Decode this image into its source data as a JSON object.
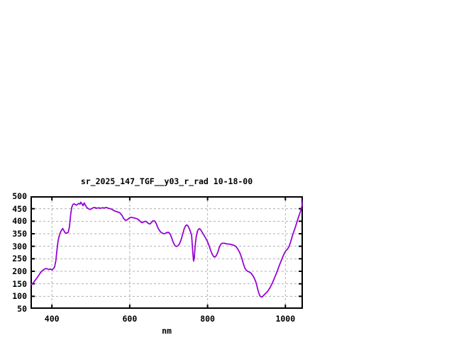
{
  "window": {
    "background": "#ffffff"
  },
  "chart": {
    "title": "sr_2025_147_TGF__y03_r_rad 10-18-00",
    "xlabel": "nm"
  },
  "chart_data": {
    "type": "line",
    "title": "sr_2025_147_TGF__y03_r_rad 10-18-00",
    "xlabel": "nm",
    "ylabel": "",
    "x_range": [
      345,
      1045
    ],
    "y_range": [
      50,
      500
    ],
    "x_ticks": [
      400,
      600,
      800,
      1000
    ],
    "y_ticks": [
      50,
      100,
      150,
      200,
      250,
      300,
      350,
      400,
      450,
      500
    ],
    "grid": true,
    "legend_position": "none",
    "colors": {
      "line": "#9400d3",
      "grid": "#b0b0b0",
      "frame": "#000000",
      "text": "#000000",
      "background": "#ffffff"
    },
    "series": [
      {
        "name": "sr_2025_147_TGF__y03_r_rad 10-18-00",
        "points": [
          [
            345,
            150
          ],
          [
            348,
            147
          ],
          [
            352,
            153
          ],
          [
            356,
            162
          ],
          [
            360,
            170
          ],
          [
            365,
            181
          ],
          [
            370,
            193
          ],
          [
            375,
            202
          ],
          [
            380,
            208
          ],
          [
            384,
            211
          ],
          [
            388,
            210
          ],
          [
            392,
            207
          ],
          [
            396,
            209
          ],
          [
            400,
            205
          ],
          [
            404,
            211
          ],
          [
            407,
            218
          ],
          [
            410,
            242
          ],
          [
            413,
            285
          ],
          [
            416,
            322
          ],
          [
            419,
            343
          ],
          [
            422,
            356
          ],
          [
            425,
            365
          ],
          [
            428,
            371
          ],
          [
            431,
            362
          ],
          [
            434,
            354
          ],
          [
            438,
            352
          ],
          [
            442,
            356
          ],
          [
            445,
            378
          ],
          [
            448,
            424
          ],
          [
            451,
            455
          ],
          [
            454,
            467
          ],
          [
            457,
            470
          ],
          [
            460,
            467
          ],
          [
            463,
            464
          ],
          [
            466,
            468
          ],
          [
            469,
            471
          ],
          [
            472,
            468
          ],
          [
            474,
            476
          ],
          [
            477,
            470
          ],
          [
            480,
            462
          ],
          [
            483,
            473
          ],
          [
            486,
            465
          ],
          [
            489,
            456
          ],
          [
            492,
            452
          ],
          [
            495,
            449
          ],
          [
            498,
            447
          ],
          [
            502,
            450
          ],
          [
            506,
            454
          ],
          [
            510,
            455
          ],
          [
            515,
            452
          ],
          [
            520,
            454
          ],
          [
            525,
            452
          ],
          [
            530,
            454
          ],
          [
            535,
            453
          ],
          [
            540,
            455
          ],
          [
            545,
            452
          ],
          [
            550,
            450
          ],
          [
            555,
            447
          ],
          [
            560,
            442
          ],
          [
            565,
            439
          ],
          [
            570,
            437
          ],
          [
            575,
            433
          ],
          [
            580,
            424
          ],
          [
            584,
            412
          ],
          [
            588,
            405
          ],
          [
            592,
            404
          ],
          [
            596,
            409
          ],
          [
            600,
            414
          ],
          [
            604,
            416
          ],
          [
            608,
            414
          ],
          [
            612,
            413
          ],
          [
            616,
            411
          ],
          [
            620,
            409
          ],
          [
            624,
            404
          ],
          [
            628,
            398
          ],
          [
            632,
            394
          ],
          [
            636,
            397
          ],
          [
            640,
            400
          ],
          [
            644,
            397
          ],
          [
            648,
            391
          ],
          [
            652,
            389
          ],
          [
            656,
            395
          ],
          [
            660,
            402
          ],
          [
            664,
            401
          ],
          [
            668,
            391
          ],
          [
            672,
            375
          ],
          [
            676,
            364
          ],
          [
            680,
            356
          ],
          [
            684,
            352
          ],
          [
            688,
            350
          ],
          [
            692,
            352
          ],
          [
            696,
            355
          ],
          [
            700,
            356
          ],
          [
            704,
            349
          ],
          [
            708,
            333
          ],
          [
            712,
            315
          ],
          [
            716,
            303
          ],
          [
            720,
            299
          ],
          [
            724,
            302
          ],
          [
            728,
            310
          ],
          [
            732,
            326
          ],
          [
            736,
            348
          ],
          [
            740,
            370
          ],
          [
            744,
            383
          ],
          [
            747,
            385
          ],
          [
            750,
            380
          ],
          [
            753,
            371
          ],
          [
            756,
            358
          ],
          [
            759,
            345
          ],
          [
            762,
            275
          ],
          [
            764,
            241
          ],
          [
            766,
            252
          ],
          [
            768,
            300
          ],
          [
            771,
            340
          ],
          [
            774,
            360
          ],
          [
            777,
            369
          ],
          [
            780,
            370
          ],
          [
            784,
            362
          ],
          [
            788,
            351
          ],
          [
            792,
            341
          ],
          [
            796,
            330
          ],
          [
            800,
            318
          ],
          [
            804,
            302
          ],
          [
            808,
            283
          ],
          [
            812,
            268
          ],
          [
            816,
            258
          ],
          [
            819,
            257
          ],
          [
            822,
            262
          ],
          [
            826,
            275
          ],
          [
            830,
            295
          ],
          [
            834,
            308
          ],
          [
            838,
            312
          ],
          [
            843,
            312
          ],
          [
            848,
            310
          ],
          [
            853,
            309
          ],
          [
            858,
            308
          ],
          [
            863,
            306
          ],
          [
            868,
            304
          ],
          [
            873,
            299
          ],
          [
            878,
            288
          ],
          [
            883,
            274
          ],
          [
            888,
            252
          ],
          [
            892,
            230
          ],
          [
            896,
            212
          ],
          [
            900,
            203
          ],
          [
            904,
            199
          ],
          [
            908,
            197
          ],
          [
            912,
            192
          ],
          [
            916,
            184
          ],
          [
            920,
            173
          ],
          [
            924,
            158
          ],
          [
            927,
            140
          ],
          [
            930,
            122
          ],
          [
            933,
            107
          ],
          [
            936,
            99
          ],
          [
            939,
            97
          ],
          [
            942,
            100
          ],
          [
            945,
            105
          ],
          [
            949,
            111
          ],
          [
            953,
            117
          ],
          [
            957,
            126
          ],
          [
            961,
            136
          ],
          [
            965,
            148
          ],
          [
            969,
            162
          ],
          [
            973,
            177
          ],
          [
            977,
            192
          ],
          [
            981,
            209
          ],
          [
            985,
            226
          ],
          [
            989,
            241
          ],
          [
            993,
            257
          ],
          [
            997,
            271
          ],
          [
            1001,
            282
          ],
          [
            1005,
            288
          ],
          [
            1009,
            298
          ],
          [
            1013,
            315
          ],
          [
            1017,
            336
          ],
          [
            1021,
            356
          ],
          [
            1025,
            373
          ],
          [
            1029,
            393
          ],
          [
            1033,
            413
          ],
          [
            1037,
            431
          ],
          [
            1041,
            451
          ],
          [
            1044,
            472
          ],
          [
            1045,
            481
          ]
        ]
      }
    ]
  }
}
